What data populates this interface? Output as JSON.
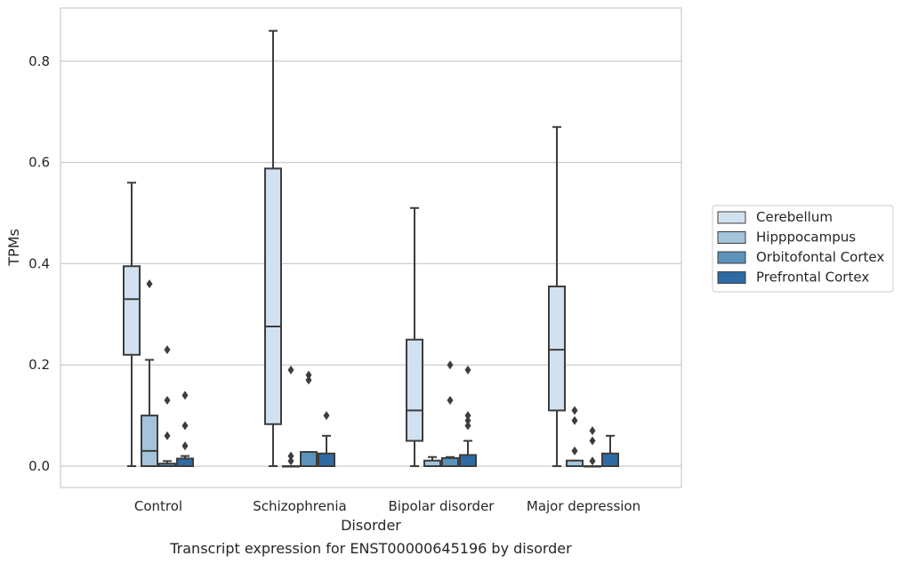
{
  "chart_data": {
    "type": "boxplot",
    "xlabel": "Disorder",
    "ylabel": "TPMs",
    "caption": "Transcript expression for ENST00000645196 by disorder",
    "ylim": [
      -0.04,
      0.905
    ],
    "yticks": [
      0.0,
      0.2,
      0.4,
      0.6,
      0.8
    ],
    "ytick_labels": [
      "0.0",
      "0.2",
      "0.4",
      "0.6",
      "0.8"
    ],
    "grid": "horizontal",
    "legend_position": "right",
    "categories": [
      "Control",
      "Schizophrenia",
      "Bipolar disorder",
      "Major depression"
    ],
    "series": [
      {
        "name": "Cerebellum",
        "color": "#d1e1f0",
        "boxes": [
          {
            "whislo": 0.0,
            "q1": 0.22,
            "med": 0.33,
            "q3": 0.395,
            "whishi": 0.56,
            "fliers": []
          },
          {
            "whislo": 0.0,
            "q1": 0.083,
            "med": 0.276,
            "q3": 0.588,
            "whishi": 0.86,
            "fliers": []
          },
          {
            "whislo": 0.0,
            "q1": 0.05,
            "med": 0.11,
            "q3": 0.25,
            "whishi": 0.51,
            "fliers": []
          },
          {
            "whislo": 0.0,
            "q1": 0.11,
            "med": 0.23,
            "q3": 0.355,
            "whishi": 0.67,
            "fliers": []
          }
        ]
      },
      {
        "name": "Hipppocampus",
        "color": "#a3c4db",
        "boxes": [
          {
            "whislo": 0.0,
            "q1": 0.0,
            "med": 0.03,
            "q3": 0.1,
            "whishi": 0.21,
            "fliers": [
              0.36
            ]
          },
          {
            "whislo": 0.0,
            "q1": 0.0,
            "med": 0.0,
            "q3": 0.0,
            "whishi": 0.0,
            "fliers": [
              0.19,
              0.02,
              0.01
            ]
          },
          {
            "whislo": 0.0,
            "q1": 0.0,
            "med": 0.0,
            "q3": 0.011,
            "whishi": 0.018,
            "fliers": []
          },
          {
            "whislo": 0.0,
            "q1": 0.0,
            "med": 0.0,
            "q3": 0.011,
            "whishi": 0.011,
            "fliers": [
              0.11,
              0.09,
              0.03
            ]
          }
        ]
      },
      {
        "name": "Orbitofontal Cortex",
        "color": "#5b93bb",
        "boxes": [
          {
            "whislo": 0.0,
            "q1": 0.0,
            "med": 0.0,
            "q3": 0.005,
            "whishi": 0.01,
            "fliers": [
              0.23,
              0.13,
              0.06
            ]
          },
          {
            "whislo": 0.0,
            "q1": 0.0,
            "med": 0.0,
            "q3": 0.028,
            "whishi": 0.028,
            "fliers": [
              0.18,
              0.17
            ]
          },
          {
            "whislo": 0.0,
            "q1": 0.0,
            "med": 0.0,
            "q3": 0.016,
            "whishi": 0.018,
            "fliers": [
              0.2,
              0.13
            ]
          },
          {
            "whislo": 0.0,
            "q1": 0.0,
            "med": 0.0,
            "q3": 0.0,
            "whishi": 0.0,
            "fliers": [
              0.07,
              0.05,
              0.01
            ]
          }
        ]
      },
      {
        "name": "Prefrontal Cortex",
        "color": "#2e6aa4",
        "boxes": [
          {
            "whislo": 0.0,
            "q1": 0.0,
            "med": 0.0,
            "q3": 0.015,
            "whishi": 0.02,
            "fliers": [
              0.14,
              0.08,
              0.04
            ]
          },
          {
            "whislo": 0.0,
            "q1": 0.0,
            "med": 0.0,
            "q3": 0.025,
            "whishi": 0.06,
            "fliers": [
              0.1
            ]
          },
          {
            "whislo": 0.0,
            "q1": 0.0,
            "med": 0.0,
            "q3": 0.022,
            "whishi": 0.05,
            "fliers": [
              0.19,
              0.1,
              0.09,
              0.08
            ]
          },
          {
            "whislo": 0.0,
            "q1": 0.0,
            "med": 0.0,
            "q3": 0.025,
            "whishi": 0.06,
            "fliers": []
          }
        ]
      }
    ]
  }
}
